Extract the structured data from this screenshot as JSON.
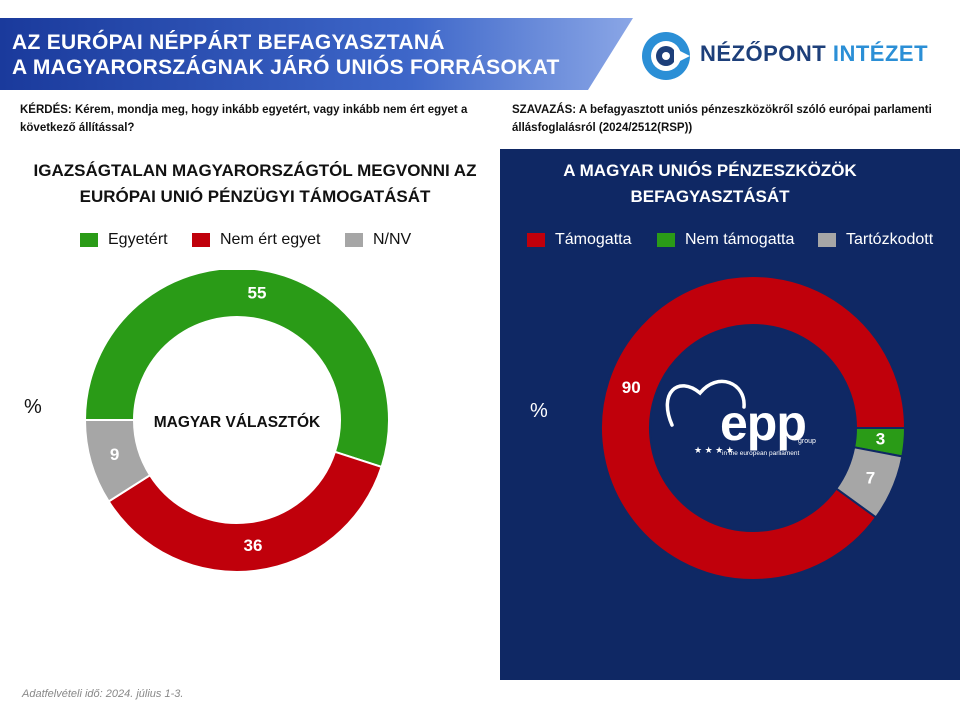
{
  "header": {
    "title_line1": "AZ EURÓPAI NÉPPÁRT BEFAGYASZTANÁ",
    "title_line2": "A MAGYARORSZÁGNAK JÁRÓ UNIÓS FORRÁSOKAT",
    "logo_part1": "NÉZŐPONT",
    "logo_part2": "INTÉZET"
  },
  "question_text": "KÉRDÉS: Kérem, mondja meg, hogy inkább egyetért, vagy inkább nem ért egyet a következő állítással?",
  "vote_text": "SZAVAZÁS: A befagyasztott uniós pénzeszközökről szóló európai parlamenti állásfoglalásról (2024/2512(RSP))",
  "colors": {
    "header_blue": "#3a62c6",
    "panel_navy": "#0f2864",
    "green": "#2a9b17",
    "red": "#c0000b",
    "gray": "#a6a6a6",
    "logo_navy": "#1d3f7a",
    "logo_blue": "#2b8fd6"
  },
  "chart_data": [
    {
      "type": "pie",
      "variant": "donut",
      "title": "IGAZSÁGTALAN MAGYARORSZÁGTÓL MEGVONNI AZ EURÓPAI UNIÓ PÉNZÜGYI TÁMOGATÁSÁT",
      "center_label": "MAGYAR VÁLASZTÓK",
      "unit": "%",
      "legend": [
        "Egyetért",
        "Nem ért egyet",
        "N/NV"
      ],
      "labels": [
        "Egyetért",
        "Nem ért egyet",
        "N/NV"
      ],
      "values": [
        55,
        36,
        9
      ],
      "value_labels": [
        "55",
        "36",
        "9"
      ],
      "colors": [
        "#2a9b17",
        "#c0000b",
        "#a6a6a6"
      ],
      "legend_position": "top"
    },
    {
      "type": "pie",
      "variant": "donut",
      "title": "A MAGYAR UNIÓS PÉNZESZKÖZÖK BEFAGYASZTÁSÁT",
      "center_label": "",
      "unit": "%",
      "legend": [
        "Támogatta",
        "Nem támogatta",
        "Tartózkodott"
      ],
      "labels": [
        "Támogatta",
        "Nem támogatta",
        "Tartózkodott"
      ],
      "values": [
        90,
        3,
        7
      ],
      "value_labels": [
        "90",
        "3",
        "7"
      ],
      "colors": [
        "#c0000b",
        "#2a9b17",
        "#a6a6a6"
      ],
      "legend_position": "top"
    }
  ],
  "center_logo": {
    "text": "epp",
    "sub_text": "group",
    "tagline": "in the european parliament"
  },
  "footer_text": "Adatfelvételi idő: 2024. július 1-3."
}
